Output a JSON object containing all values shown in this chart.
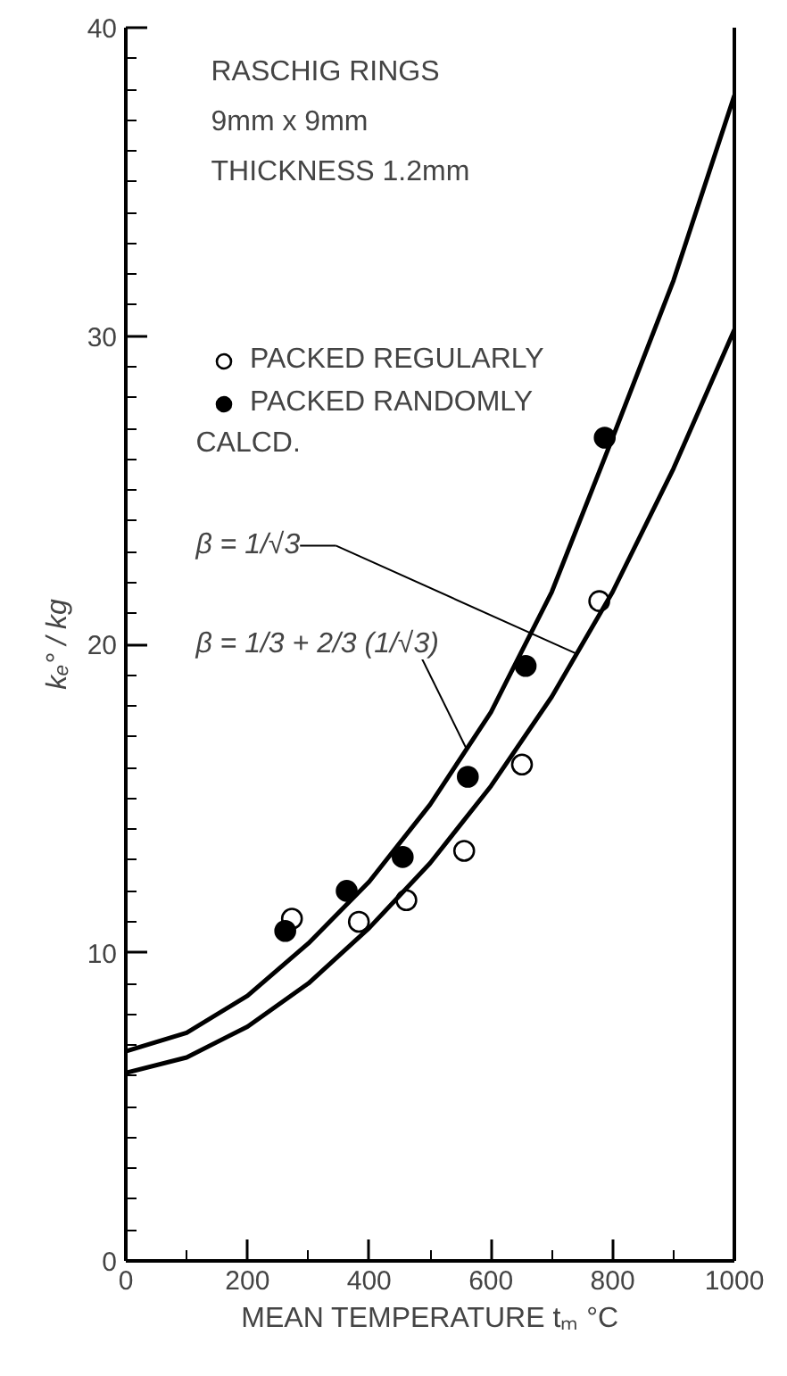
{
  "chart_data": {
    "type": "scatter",
    "title": "RASCHIG RINGS",
    "subtitle": "9mm x 9mm\nTHICKNESS 1.2mm",
    "xlabel": "MEAN TEMPERATURE tₘ °C",
    "ylabel": "kₑ° / kg",
    "xlim": [
      0,
      1000
    ],
    "ylim": [
      0,
      40
    ],
    "xticks": [
      0,
      200,
      400,
      600,
      800,
      1000
    ],
    "yticks": [
      0,
      10,
      20,
      30,
      40
    ],
    "grid": false,
    "legend": "top left",
    "series": [
      {
        "name": "PACKED REGULARLY",
        "marker": "circle",
        "color": "#ffffff",
        "x": [
          273,
          383,
          461,
          556,
          651,
          778
        ],
        "values": [
          11.1,
          11.0,
          11.7,
          13.3,
          16.1,
          21.4
        ]
      },
      {
        "name": "PACKED RANDOMLY",
        "marker": "circle",
        "color": "#000000",
        "x": [
          262,
          363,
          455,
          562,
          657,
          787
        ],
        "values": [
          10.7,
          12.0,
          13.1,
          15.7,
          19.3,
          26.7
        ]
      },
      {
        "type": "line",
        "color": "#000000",
        "line_style": "solid",
        "x": [
          0,
          100,
          200,
          300,
          400,
          500,
          600,
          700,
          800,
          900,
          1000
        ],
        "values": [
          6.8,
          7.4,
          8.6,
          10.3,
          12.3,
          14.8,
          17.8,
          21.7,
          26.7,
          31.8,
          37.8
        ]
      },
      {
        "type": "line",
        "color": "#000000",
        "line_style": "solid",
        "x": [
          0,
          100,
          200,
          300,
          400,
          500,
          600,
          700,
          800,
          900,
          1000
        ],
        "values": [
          6.1,
          6.6,
          7.6,
          9.0,
          10.8,
          12.9,
          15.4,
          18.3,
          21.7,
          25.7,
          30.2
        ]
      }
    ],
    "annotations": [
      "CALCD.",
      {
        "text": "β = 1/√3",
        "x": 740,
        "y": 19.7
      },
      {
        "text": "β = 1/3 + 2/3 (1/√3)",
        "x": 560,
        "y": 16.6
      }
    ]
  }
}
